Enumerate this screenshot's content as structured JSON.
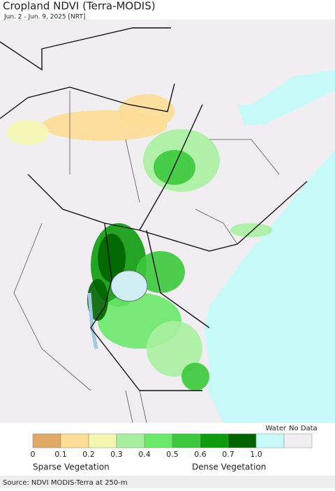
{
  "title": "Cropland NDVI (Terra-MODIS)",
  "subtitle": "Jun. 2 - Jun. 9, 2025 [NRT]",
  "legend": {
    "colors": [
      "#e0a965",
      "#fddc95",
      "#f4f7b0",
      "#a8f0a0",
      "#6ae86a",
      "#3cc83c",
      "#0d9a0d",
      "#006400",
      "#c8fafa",
      "#f0eef0"
    ],
    "water": "Water",
    "no_data": "No Data",
    "ticks": [
      "0",
      "0.1",
      "0.2",
      "0.3",
      "0.4",
      "0.5",
      "0.6",
      "0.7",
      "1.0"
    ],
    "low": "Sparse Vegetation",
    "high": "Dense Vegetation"
  },
  "source": "Source: NDVI MODIS-Terra at 250-m"
}
